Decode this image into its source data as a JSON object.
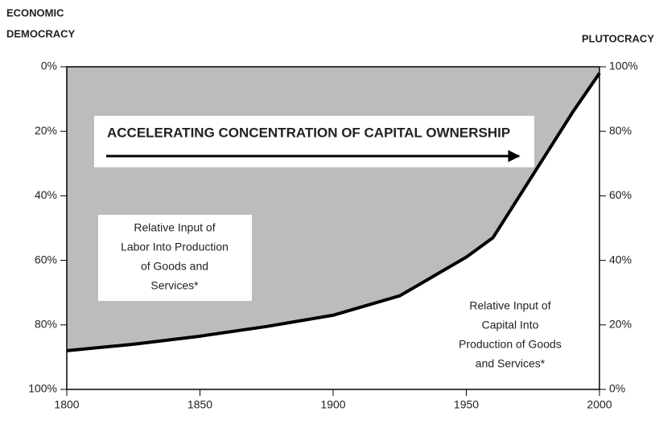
{
  "chart_data": {
    "type": "area",
    "left_axis_label": [
      "ECONOMIC",
      "DEMOCRACY"
    ],
    "right_axis_label": "PLUTOCRACY",
    "arrow_annotation": "ACCELERATING CONCENTRATION OF CAPITAL OWNERSHIP",
    "labor_annotation": [
      "Relative Input of",
      "Labor Into Production",
      "of Goods and",
      "Services*"
    ],
    "capital_annotation": [
      "Relative Input of",
      "Capital Into",
      "Production of Goods",
      "and Services*"
    ],
    "x": [
      1800,
      1825,
      1850,
      1875,
      1900,
      1925,
      1950,
      1960,
      1970,
      1980,
      1990,
      2000
    ],
    "series": [
      {
        "name": "Capital",
        "axis": "y2",
        "color": "#000000",
        "fill": "#bcbcbc",
        "values": [
          12,
          14,
          16.5,
          19.5,
          23,
          29,
          41,
          47,
          60,
          73,
          86,
          98
        ]
      }
    ],
    "xlim": [
      1800,
      2000
    ],
    "xticks": [
      1800,
      1850,
      1900,
      1950,
      2000
    ],
    "ylim": [
      100,
      0
    ],
    "yticks": [
      {
        "value": 0,
        "label": "0%"
      },
      {
        "value": 20,
        "label": "20%"
      },
      {
        "value": 40,
        "label": "40%"
      },
      {
        "value": 60,
        "label": "60%"
      },
      {
        "value": 80,
        "label": "80%"
      },
      {
        "value": 100,
        "label": "100%"
      }
    ],
    "y2lim": [
      0,
      100
    ],
    "y2ticks": [
      {
        "value": 0,
        "label": "0%"
      },
      {
        "value": 20,
        "label": "20%"
      },
      {
        "value": 40,
        "label": "40%"
      },
      {
        "value": 60,
        "label": "60%"
      },
      {
        "value": 80,
        "label": "80%"
      },
      {
        "value": 100,
        "label": "100%"
      }
    ]
  }
}
